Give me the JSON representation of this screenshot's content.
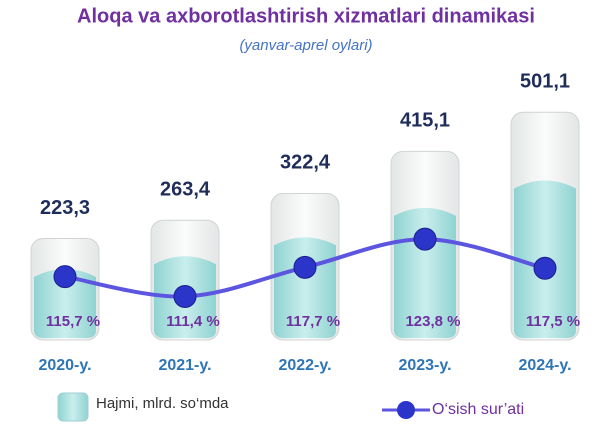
{
  "chart_data": {
    "type": "bar",
    "title": "Aloqa va axborotlashtirish xizmatlari dinamikasi",
    "subtitle": "(yanvar-aprel oylari)",
    "categories": [
      "2020-y.",
      "2021-y.",
      "2022-y.",
      "2023-y.",
      "2024-y."
    ],
    "ylim": [
      0,
      550
    ],
    "y2lim": [
      102,
      156
    ],
    "series": [
      {
        "name": "Hajmi, mlrd. so‘mda",
        "type": "bar",
        "color": "#a8dedd",
        "values": [
          223.3,
          263.4,
          322.4,
          415.1,
          501.1
        ],
        "value_labels": [
          "223,3",
          "263,4",
          "322,4",
          "415,1",
          "501,1"
        ]
      },
      {
        "name": "O‘sish sur’ati",
        "type": "line",
        "axis": "y2",
        "color": "#5b55e0",
        "values": [
          115.7,
          111.4,
          117.7,
          123.8,
          117.5
        ],
        "value_labels": [
          "115,7 %",
          "111,4 %",
          "117,7 %",
          "123,8 %",
          "117,5 %"
        ]
      }
    ]
  }
}
